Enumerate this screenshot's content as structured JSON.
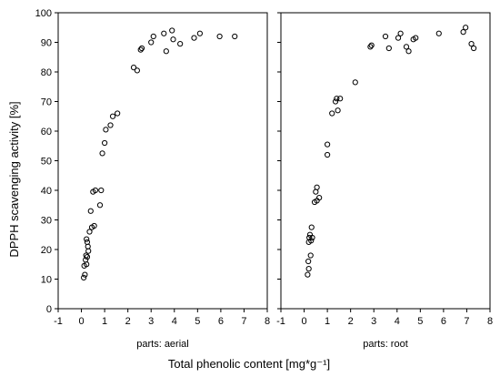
{
  "chart_data": {
    "type": "scatter",
    "ylabel": "DPPH scavenging activity [%]",
    "xlabel": "Total phenolic content [mg*g⁻¹]",
    "xlim": [
      -1,
      8
    ],
    "ylim": [
      0,
      100
    ],
    "xticks": [
      "-1",
      "0",
      "1",
      "2",
      "3",
      "4",
      "5",
      "6",
      "7",
      "8"
    ],
    "yticks": [
      "0",
      "10",
      "20",
      "30",
      "40",
      "50",
      "60",
      "70",
      "80",
      "90",
      "100"
    ],
    "grid": false,
    "legend": "none",
    "marker": "open-circle",
    "panels": [
      {
        "label": "parts: aerial",
        "points": [
          {
            "x": 0.1,
            "y": 10.5
          },
          {
            "x": 0.15,
            "y": 11.5
          },
          {
            "x": 0.12,
            "y": 14.5
          },
          {
            "x": 0.22,
            "y": 15.0
          },
          {
            "x": 0.18,
            "y": 16.5
          },
          {
            "x": 0.25,
            "y": 17.5
          },
          {
            "x": 0.2,
            "y": 18.0
          },
          {
            "x": 0.3,
            "y": 19.5
          },
          {
            "x": 0.28,
            "y": 21.0
          },
          {
            "x": 0.25,
            "y": 22.5
          },
          {
            "x": 0.22,
            "y": 23.5
          },
          {
            "x": 0.35,
            "y": 26.0
          },
          {
            "x": 0.45,
            "y": 27.5
          },
          {
            "x": 0.55,
            "y": 28.0
          },
          {
            "x": 0.4,
            "y": 33.0
          },
          {
            "x": 0.8,
            "y": 35.0
          },
          {
            "x": 0.5,
            "y": 39.5
          },
          {
            "x": 0.6,
            "y": 40.0
          },
          {
            "x": 0.85,
            "y": 40.0
          },
          {
            "x": 0.9,
            "y": 52.5
          },
          {
            "x": 1.0,
            "y": 56.0
          },
          {
            "x": 1.05,
            "y": 60.5
          },
          {
            "x": 1.25,
            "y": 62.0
          },
          {
            "x": 1.35,
            "y": 65.0
          },
          {
            "x": 1.55,
            "y": 66.0
          },
          {
            "x": 2.25,
            "y": 81.5
          },
          {
            "x": 2.4,
            "y": 80.5
          },
          {
            "x": 2.55,
            "y": 87.5
          },
          {
            "x": 2.6,
            "y": 88.0
          },
          {
            "x": 3.0,
            "y": 90.0
          },
          {
            "x": 3.1,
            "y": 92.0
          },
          {
            "x": 3.55,
            "y": 93.0
          },
          {
            "x": 3.65,
            "y": 87.0
          },
          {
            "x": 3.9,
            "y": 94.0
          },
          {
            "x": 3.95,
            "y": 91.0
          },
          {
            "x": 4.25,
            "y": 89.5
          },
          {
            "x": 4.85,
            "y": 91.5
          },
          {
            "x": 5.1,
            "y": 93.0
          },
          {
            "x": 5.95,
            "y": 92.0
          },
          {
            "x": 6.6,
            "y": 92.0
          }
        ]
      },
      {
        "label": "parts: root",
        "points": [
          {
            "x": 0.15,
            "y": 11.5
          },
          {
            "x": 0.2,
            "y": 13.5
          },
          {
            "x": 0.18,
            "y": 16.0
          },
          {
            "x": 0.28,
            "y": 18.0
          },
          {
            "x": 0.2,
            "y": 22.5
          },
          {
            "x": 0.3,
            "y": 23.0
          },
          {
            "x": 0.22,
            "y": 24.0
          },
          {
            "x": 0.35,
            "y": 24.0
          },
          {
            "x": 0.25,
            "y": 25.0
          },
          {
            "x": 0.32,
            "y": 27.5
          },
          {
            "x": 0.45,
            "y": 36.0
          },
          {
            "x": 0.55,
            "y": 36.5
          },
          {
            "x": 0.65,
            "y": 37.5
          },
          {
            "x": 0.5,
            "y": 39.5
          },
          {
            "x": 0.55,
            "y": 41.0
          },
          {
            "x": 1.0,
            "y": 52.0
          },
          {
            "x": 1.0,
            "y": 55.5
          },
          {
            "x": 1.2,
            "y": 66.0
          },
          {
            "x": 1.45,
            "y": 67.0
          },
          {
            "x": 1.35,
            "y": 70.0
          },
          {
            "x": 1.4,
            "y": 71.0
          },
          {
            "x": 1.55,
            "y": 71.0
          },
          {
            "x": 2.2,
            "y": 76.5
          },
          {
            "x": 2.85,
            "y": 88.5
          },
          {
            "x": 2.9,
            "y": 89.0
          },
          {
            "x": 3.5,
            "y": 92.0
          },
          {
            "x": 3.65,
            "y": 88.0
          },
          {
            "x": 4.05,
            "y": 91.5
          },
          {
            "x": 4.15,
            "y": 93.0
          },
          {
            "x": 4.4,
            "y": 88.5
          },
          {
            "x": 4.5,
            "y": 87.0
          },
          {
            "x": 4.7,
            "y": 91.0
          },
          {
            "x": 4.8,
            "y": 91.5
          },
          {
            "x": 5.8,
            "y": 93.0
          },
          {
            "x": 6.85,
            "y": 93.5
          },
          {
            "x": 6.95,
            "y": 95.0
          },
          {
            "x": 7.2,
            "y": 89.5
          },
          {
            "x": 7.3,
            "y": 88.0
          }
        ]
      }
    ]
  }
}
